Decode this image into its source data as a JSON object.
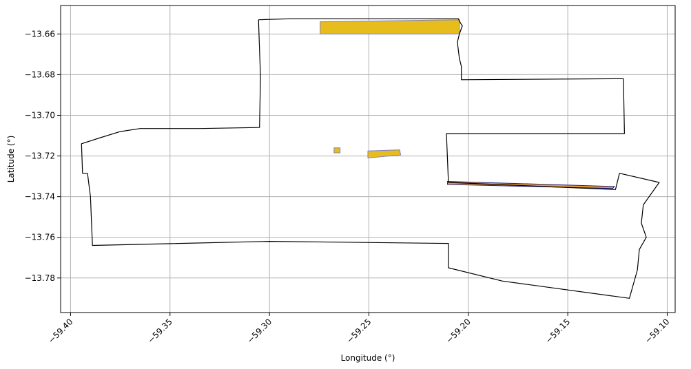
{
  "chart_data": {
    "type": "map",
    "xlabel": "Longitude (°)",
    "ylabel": "Latitude (°)",
    "xlim": [
      -59.405,
      -59.096
    ],
    "ylim": [
      -13.797,
      -13.646
    ],
    "grid": true,
    "x_ticks": [
      -59.4,
      -59.35,
      -59.3,
      -59.25,
      -59.2,
      -59.15,
      -59.1
    ],
    "x_tick_labels": [
      "−59.40",
      "−59.35",
      "−59.30",
      "−59.25",
      "−59.20",
      "−59.15",
      "−59.10"
    ],
    "y_ticks": [
      -13.66,
      -13.68,
      -13.7,
      -13.72,
      -13.74,
      -13.76,
      -13.78
    ],
    "y_tick_labels": [
      "−13.66",
      "−13.68",
      "−13.70",
      "−13.72",
      "−13.74",
      "−13.76",
      "−13.78"
    ],
    "colors": {
      "boundary": "#000000",
      "patch_fill": "#e6bd1c",
      "patch_edge": "#7f7fbf",
      "orange_strip": "#e69a2e",
      "blue_edge": "#1f1f8f",
      "grid": "#b0b0b0"
    },
    "boundary": [
      [
        -59.3055,
        -13.653
      ],
      [
        -59.289,
        -13.6525
      ],
      [
        -59.205,
        -13.6525
      ],
      [
        -59.204,
        -13.6545
      ],
      [
        -59.203,
        -13.656
      ],
      [
        -59.2045,
        -13.66
      ],
      [
        -59.2055,
        -13.664
      ],
      [
        -59.205,
        -13.668
      ],
      [
        -59.2045,
        -13.672
      ],
      [
        -59.2035,
        -13.676
      ],
      [
        -59.2035,
        -13.6825
      ],
      [
        -59.122,
        -13.682
      ],
      [
        -59.1215,
        -13.709
      ],
      [
        -59.211,
        -13.709
      ],
      [
        -59.21,
        -13.733
      ],
      [
        -59.126,
        -13.7365
      ],
      [
        -59.124,
        -13.7285
      ],
      [
        -59.104,
        -13.733
      ],
      [
        -59.112,
        -13.744
      ],
      [
        -59.113,
        -13.753
      ],
      [
        -59.1105,
        -13.76
      ],
      [
        -59.114,
        -13.766
      ],
      [
        -59.115,
        -13.776
      ],
      [
        -59.119,
        -13.79
      ],
      [
        -59.183,
        -13.7815
      ],
      [
        -59.21,
        -13.775
      ],
      [
        -59.21,
        -13.763
      ],
      [
        -59.3,
        -13.762
      ],
      [
        -59.389,
        -13.764
      ],
      [
        -59.39,
        -13.74
      ],
      [
        -59.3915,
        -13.7285
      ],
      [
        -59.394,
        -13.7285
      ],
      [
        -59.3945,
        -13.714
      ],
      [
        -59.385,
        -13.711
      ],
      [
        -59.375,
        -13.708
      ],
      [
        -59.365,
        -13.7065
      ],
      [
        -59.335,
        -13.7065
      ],
      [
        -59.305,
        -13.706
      ],
      [
        -59.3045,
        -13.681
      ],
      [
        -59.3055,
        -13.653
      ]
    ],
    "patches": [
      [
        [
          -59.2745,
          -13.654
        ],
        [
          -59.2045,
          -13.653
        ],
        [
          -59.2045,
          -13.66
        ],
        [
          -59.2745,
          -13.66
        ]
      ],
      [
        [
          -59.2675,
          -13.716
        ],
        [
          -59.2645,
          -13.716
        ],
        [
          -59.2645,
          -13.7185
        ],
        [
          -59.2675,
          -13.7185
        ]
      ],
      [
        [
          -59.2505,
          -13.7175
        ],
        [
          -59.2345,
          -13.717
        ],
        [
          -59.234,
          -13.7195
        ],
        [
          -59.2505,
          -13.721
        ]
      ],
      [
        [
          -59.2105,
          -13.7325
        ],
        [
          -59.1265,
          -13.735
        ],
        [
          -59.1275,
          -13.736
        ],
        [
          -59.2105,
          -13.734
        ]
      ]
    ]
  }
}
